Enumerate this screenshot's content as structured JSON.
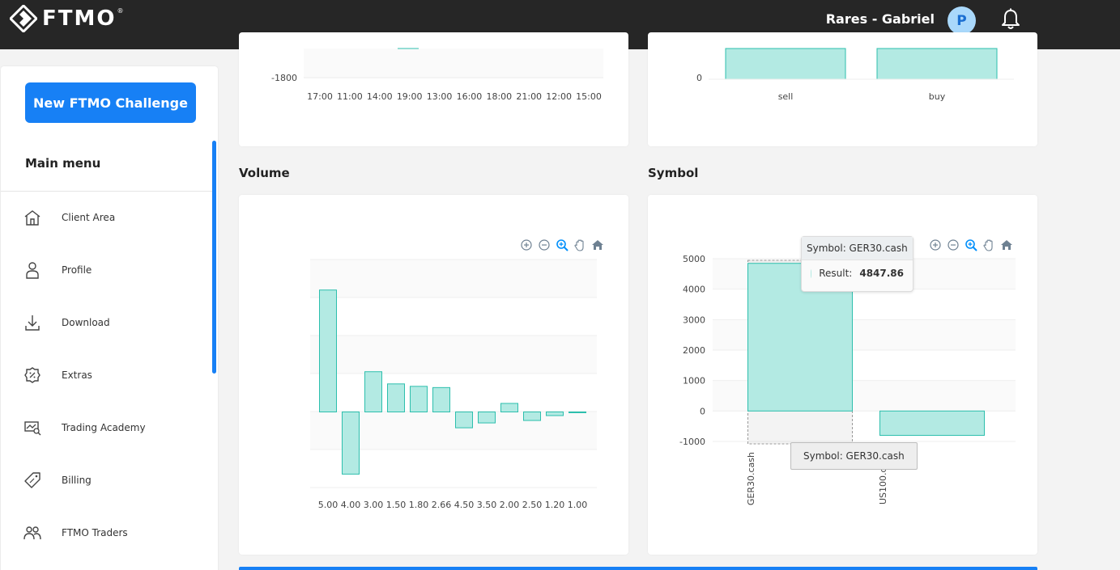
{
  "header": {
    "logo_text": "FTMO",
    "logo_reg": "®",
    "username": "Rares - Gabriel",
    "avatar_initial": "P"
  },
  "sidebar": {
    "new_challenge_label": "New FTMO Challenge",
    "menu_title": "Main menu",
    "items": [
      {
        "label": "Client Area",
        "icon": "home-icon"
      },
      {
        "label": "Profile",
        "icon": "user-icon"
      },
      {
        "label": "Download",
        "icon": "download-icon"
      },
      {
        "label": "Extras",
        "icon": "badge-percent-icon"
      },
      {
        "label": "Trading Academy",
        "icon": "academy-icon"
      },
      {
        "label": "Billing",
        "icon": "price-tag-icon"
      },
      {
        "label": "FTMO Traders",
        "icon": "users-icon"
      }
    ]
  },
  "sections": {
    "volume_title": "Volume",
    "symbol_title": "Symbol"
  },
  "chart_data": [
    {
      "type": "bar",
      "id": "time-chart-partial",
      "categories": [
        "17:00",
        "11:00",
        "14:00",
        "19:00",
        "13:00",
        "16:00",
        "18:00",
        "21:00",
        "12:00",
        "15:00"
      ],
      "y_tick_visible": [
        "-1800"
      ]
    },
    {
      "type": "bar",
      "id": "direction-chart-partial",
      "categories": [
        "sell",
        "buy"
      ],
      "y_tick_visible": [
        "0"
      ]
    },
    {
      "type": "bar",
      "id": "volume-chart",
      "categories": [
        "5.00",
        "4.00",
        "3.00",
        "1.50",
        "1.80",
        "2.66",
        "4.50",
        "3.50",
        "2.00",
        "2.50",
        "1.20",
        "1.00"
      ],
      "values": [
        5000,
        -2550,
        1650,
        1150,
        1050,
        1000,
        -650,
        -450,
        350,
        -350,
        -150,
        -30
      ],
      "ylim": [
        -3100,
        6250
      ],
      "color": "#b3eae3"
    },
    {
      "type": "bar",
      "id": "symbol-chart",
      "categories": [
        "GER30.cash",
        "US100.cash"
      ],
      "values": [
        4847.86,
        -800
      ],
      "yticks": [
        5000,
        4000,
        3000,
        2000,
        1000,
        0,
        -1000
      ],
      "ylim": [
        -1000,
        5000
      ],
      "color": "#b3eae3",
      "tooltip": {
        "title": "Symbol: GER30.cash",
        "label": "Result:",
        "value": "4847.86"
      },
      "xaxis_tooltip": "Symbol: GER30.cash"
    }
  ]
}
